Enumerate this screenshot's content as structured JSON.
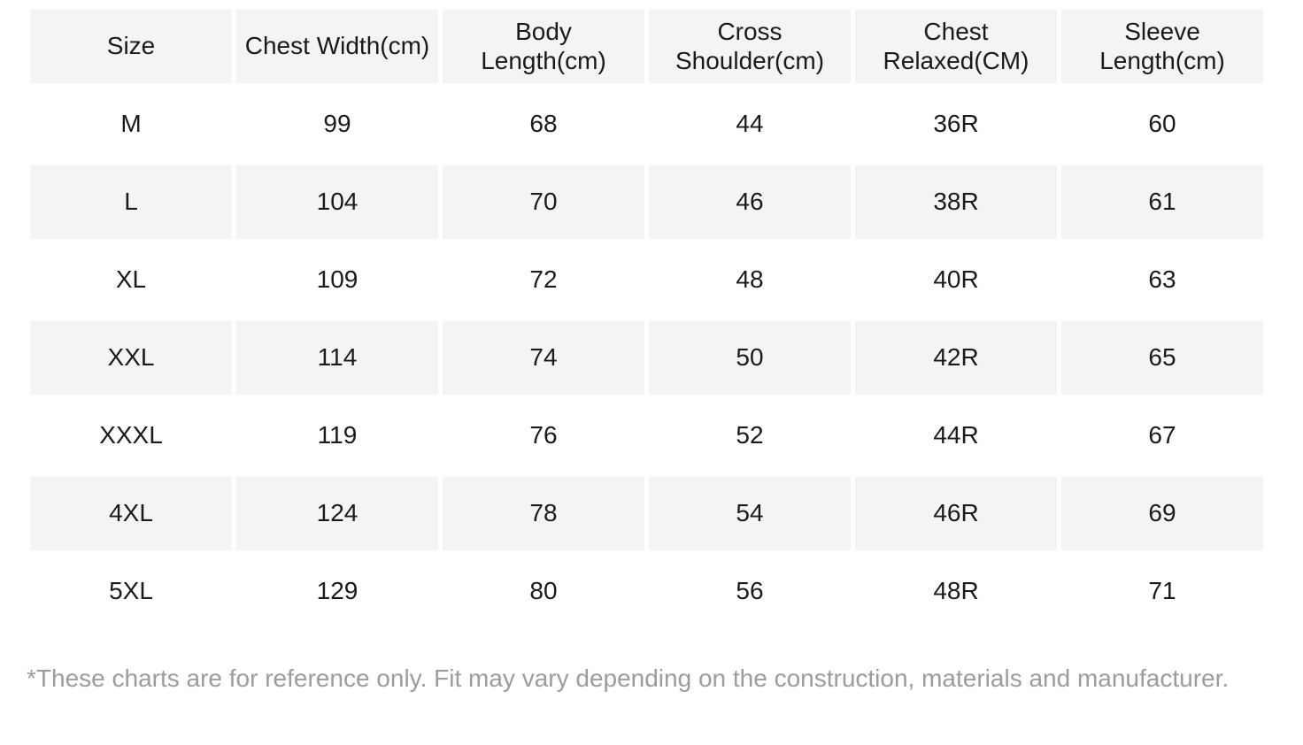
{
  "table": {
    "columns": [
      {
        "label": "Size"
      },
      {
        "label": "Chest Width(cm)"
      },
      {
        "label": "Body Length(cm)"
      },
      {
        "label": "Cross Shoulder(cm)"
      },
      {
        "label": "Chest Relaxed(CM)"
      },
      {
        "label": "Sleeve Length(cm)"
      }
    ],
    "rows": [
      {
        "cells": [
          "M",
          "99",
          "68",
          "44",
          "36R",
          "60"
        ]
      },
      {
        "cells": [
          "L",
          "104",
          "70",
          "46",
          "38R",
          "61"
        ]
      },
      {
        "cells": [
          "XL",
          "109",
          "72",
          "48",
          "40R",
          "63"
        ]
      },
      {
        "cells": [
          "XXL",
          "114",
          "74",
          "50",
          "42R",
          "65"
        ]
      },
      {
        "cells": [
          "XXXL",
          "119",
          "76",
          "52",
          "44R",
          "67"
        ]
      },
      {
        "cells": [
          "4XL",
          "124",
          "78",
          "54",
          "46R",
          "69"
        ]
      },
      {
        "cells": [
          "5XL",
          "129",
          "80",
          "56",
          "48R",
          "71"
        ]
      }
    ]
  },
  "footnote": "*These charts are for reference only. Fit may vary depending on the construction, materials and manufacturer.",
  "colors": {
    "background": "#ffffff",
    "cell_shaded": "#f4f4f4",
    "text": "#1a1a1a",
    "footnote_text": "#9c9c9c"
  }
}
